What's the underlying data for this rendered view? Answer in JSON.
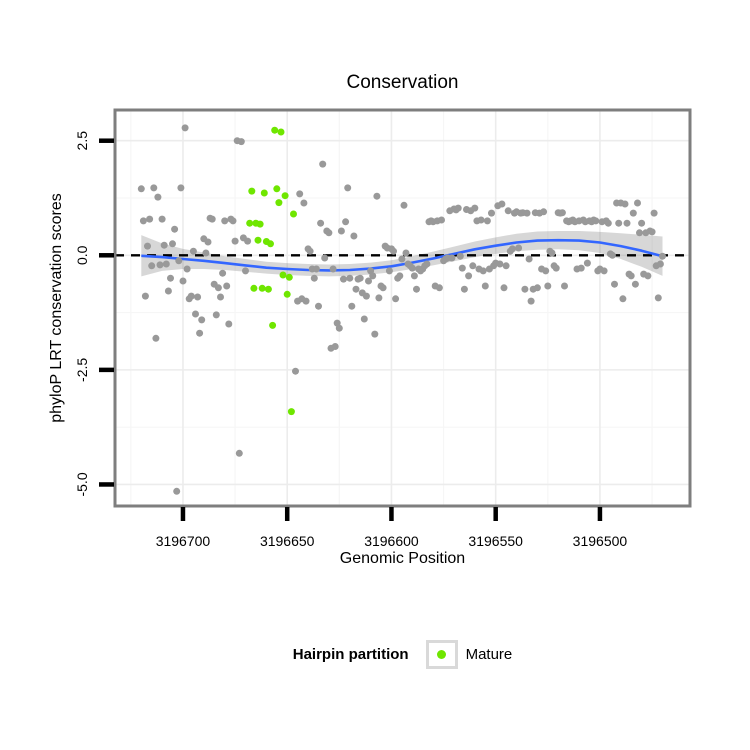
{
  "chart_data": {
    "type": "scatter",
    "title": "Conservation",
    "xlabel": "Genomic Position",
    "ylabel": "phyloP LRT conservation scores",
    "x_axis_reversed": true,
    "x_domain": [
      3196732.6,
      3196456.8
    ],
    "y_domain": [
      3.17,
      -5.47
    ],
    "x_ticks": [
      3196700,
      3196650,
      3196600,
      3196550,
      3196500
    ],
    "x_minor_gridlines": [
      3196725,
      3196675,
      3196625,
      3196575,
      3196525,
      3196475
    ],
    "y_ticks": [
      "2.5",
      "0.0",
      "-2.5",
      "-5.0"
    ],
    "y_tick_values": [
      2.5,
      0.0,
      -2.5,
      -5.0
    ],
    "y_minor_gridlines": [
      1.25,
      -1.25,
      -3.75
    ],
    "grid": "on",
    "reference_line": {
      "y": 0,
      "style": "dashed",
      "color": "#000000"
    },
    "legend": {
      "title": "Hairpin partition",
      "position": "bottom",
      "entries": [
        {
          "label": "Mature",
          "color": "#6FE600"
        }
      ]
    },
    "colors": {
      "other_points": "#999999",
      "mature_points": "#6FE600",
      "smooth_line": "#3366FF",
      "smooth_band": "rgba(110,110,110,0.28)",
      "panel_border": "#7e7e7e",
      "grid_major": "#ececec",
      "grid_minor": "#f6f6f6",
      "tick_marks": "#000000",
      "text": "#000000"
    },
    "series": [
      {
        "name": "other",
        "color": "#999999",
        "points": [
          [
            3196720,
            1.45
          ],
          [
            3196719,
            0.75
          ],
          [
            3196718,
            -0.89
          ],
          [
            3196717,
            0.2
          ],
          [
            3196716,
            0.79
          ],
          [
            3196715,
            -0.23
          ],
          [
            3196714,
            1.47
          ],
          [
            3196713,
            -1.81
          ],
          [
            3196712,
            1.27
          ],
          [
            3196711,
            -0.21
          ],
          [
            3196710,
            0.79
          ],
          [
            3196709,
            0.22
          ],
          [
            3196708,
            -0.19
          ],
          [
            3196707,
            -0.78
          ],
          [
            3196706,
            -0.5
          ],
          [
            3196705,
            0.25
          ],
          [
            3196704,
            0.57
          ],
          [
            3196703,
            -5.15
          ],
          [
            3196702,
            -0.12
          ],
          [
            3196701,
            1.47
          ],
          [
            3196700,
            -0.56
          ],
          [
            3196699,
            2.78
          ],
          [
            3196698,
            -0.3
          ],
          [
            3196697,
            -0.95
          ],
          [
            3196696,
            -0.89
          ],
          [
            3196695,
            0.09
          ],
          [
            3196694,
            -1.28
          ],
          [
            3196693,
            -0.91
          ],
          [
            3196692,
            -1.7
          ],
          [
            3196691,
            -1.41
          ],
          [
            3196690,
            0.36
          ],
          [
            3196689,
            0.05
          ],
          [
            3196688,
            0.29
          ],
          [
            3196687,
            0.81
          ],
          [
            3196686,
            0.79
          ],
          [
            3196685,
            -0.63
          ],
          [
            3196684,
            -1.3
          ],
          [
            3196683,
            -0.71
          ],
          [
            3196682,
            -0.91
          ],
          [
            3196681,
            -0.39
          ],
          [
            3196680,
            0.75
          ],
          [
            3196679,
            -0.67
          ],
          [
            3196678,
            -1.5
          ],
          [
            3196677,
            0.79
          ],
          [
            3196676,
            0.75
          ],
          [
            3196675,
            0.31
          ],
          [
            3196674,
            2.5
          ],
          [
            3196673,
            -4.32
          ],
          [
            3196672,
            2.48
          ],
          [
            3196671,
            0.38
          ],
          [
            3196670,
            -0.34
          ],
          [
            3196669,
            0.31
          ],
          [
            3196646,
            -2.53
          ],
          [
            3196645,
            -1.0
          ],
          [
            3196644,
            1.34
          ],
          [
            3196643,
            -0.95
          ],
          [
            3196642,
            1.14
          ],
          [
            3196641,
            -1.0
          ],
          [
            3196640,
            0.14
          ],
          [
            3196639,
            0.09
          ],
          [
            3196638,
            -0.3
          ],
          [
            3196637,
            -0.5
          ],
          [
            3196636,
            -0.3
          ],
          [
            3196635,
            -1.11
          ],
          [
            3196634,
            0.7
          ],
          [
            3196633,
            1.99
          ],
          [
            3196632,
            -0.06
          ],
          [
            3196631,
            0.53
          ],
          [
            3196630,
            0.49
          ],
          [
            3196629,
            -2.03
          ],
          [
            3196628,
            -0.3
          ],
          [
            3196627,
            -1.99
          ],
          [
            3196626,
            -1.48
          ],
          [
            3196625,
            -1.59
          ],
          [
            3196624,
            0.53
          ],
          [
            3196623,
            -0.52
          ],
          [
            3196622,
            0.73
          ],
          [
            3196621,
            1.47
          ],
          [
            3196620,
            -0.5
          ],
          [
            3196619,
            -1.11
          ],
          [
            3196618,
            0.42
          ],
          [
            3196617,
            -0.74
          ],
          [
            3196616,
            -0.52
          ],
          [
            3196615,
            -0.5
          ],
          [
            3196614,
            -0.82
          ],
          [
            3196613,
            -1.39
          ],
          [
            3196612,
            -0.89
          ],
          [
            3196611,
            -0.56
          ],
          [
            3196610,
            -0.34
          ],
          [
            3196609,
            -0.45
          ],
          [
            3196608,
            -1.72
          ],
          [
            3196607,
            1.29
          ],
          [
            3196606,
            -0.93
          ],
          [
            3196605,
            -0.67
          ],
          [
            3196604,
            -0.71
          ],
          [
            3196603,
            0.2
          ],
          [
            3196602,
            0.16
          ],
          [
            3196601,
            -0.34
          ],
          [
            3196600,
            0.14
          ],
          [
            3196599,
            0.09
          ],
          [
            3196598,
            -0.95
          ],
          [
            3196597,
            -0.5
          ],
          [
            3196596,
            -0.45
          ],
          [
            3196595,
            -0.08
          ],
          [
            3196594,
            1.09
          ],
          [
            3196593,
            0.05
          ],
          [
            3196592,
            -0.19
          ],
          [
            3196591,
            -0.23
          ],
          [
            3196590,
            -0.28
          ],
          [
            3196589,
            -0.45
          ],
          [
            3196588,
            -0.74
          ],
          [
            3196587,
            -0.3
          ],
          [
            3196586,
            -0.34
          ],
          [
            3196585,
            -0.3
          ],
          [
            3196584,
            -0.23
          ],
          [
            3196583,
            -0.19
          ],
          [
            3196582,
            0.73
          ],
          [
            3196581,
            0.75
          ],
          [
            3196580,
            0.73
          ],
          [
            3196579,
            -0.67
          ],
          [
            3196578,
            0.75
          ],
          [
            3196577,
            -0.71
          ],
          [
            3196576,
            0.77
          ],
          [
            3196575,
            -0.12
          ],
          [
            3196574,
            -0.08
          ],
          [
            3196573,
            -0.06
          ],
          [
            3196572,
            0.97
          ],
          [
            3196571,
            -0.06
          ],
          [
            3196570,
            1.01
          ],
          [
            3196569,
            0.99
          ],
          [
            3196568,
            1.03
          ],
          [
            3196567,
            -0.02
          ],
          [
            3196566,
            -0.28
          ],
          [
            3196565,
            -0.74
          ],
          [
            3196564,
            1.0
          ],
          [
            3196563,
            -0.45
          ],
          [
            3196562,
            0.97
          ],
          [
            3196561,
            -0.23
          ],
          [
            3196560,
            1.03
          ],
          [
            3196559,
            0.75
          ],
          [
            3196558,
            -0.3
          ],
          [
            3196557,
            0.77
          ],
          [
            3196556,
            -0.34
          ],
          [
            3196555,
            -0.67
          ],
          [
            3196554,
            0.75
          ],
          [
            3196553,
            -0.3
          ],
          [
            3196552,
            0.92
          ],
          [
            3196551,
            -0.23
          ],
          [
            3196550,
            -0.17
          ],
          [
            3196549,
            1.08
          ],
          [
            3196548,
            -0.19
          ],
          [
            3196547,
            1.12
          ],
          [
            3196546,
            -0.71
          ],
          [
            3196545,
            -0.23
          ],
          [
            3196544,
            0.97
          ],
          [
            3196543,
            0.09
          ],
          [
            3196542,
            0.14
          ],
          [
            3196541,
            0.92
          ],
          [
            3196540,
            0.95
          ],
          [
            3196539,
            0.16
          ],
          [
            3196538,
            0.92
          ],
          [
            3196537,
            0.93
          ],
          [
            3196536,
            -0.74
          ],
          [
            3196535,
            0.92
          ],
          [
            3196534,
            -0.08
          ],
          [
            3196533,
            -1.0
          ],
          [
            3196532,
            -0.74
          ],
          [
            3196531,
            0.93
          ],
          [
            3196530,
            -0.71
          ],
          [
            3196529,
            0.92
          ],
          [
            3196528,
            -0.3
          ],
          [
            3196527,
            0.95
          ],
          [
            3196526,
            -0.34
          ],
          [
            3196525,
            -0.67
          ],
          [
            3196524,
            0.09
          ],
          [
            3196523,
            0.05
          ],
          [
            3196522,
            -0.23
          ],
          [
            3196521,
            -0.28
          ],
          [
            3196520,
            0.93
          ],
          [
            3196519,
            0.92
          ],
          [
            3196518,
            0.93
          ],
          [
            3196517,
            -0.67
          ],
          [
            3196516,
            0.75
          ],
          [
            3196515,
            0.73
          ],
          [
            3196514,
            0.75
          ],
          [
            3196513,
            0.77
          ],
          [
            3196512,
            0.73
          ],
          [
            3196511,
            -0.3
          ],
          [
            3196510,
            0.75
          ],
          [
            3196509,
            -0.28
          ],
          [
            3196508,
            0.77
          ],
          [
            3196507,
            0.73
          ],
          [
            3196506,
            -0.17
          ],
          [
            3196505,
            0.75
          ],
          [
            3196504,
            0.73
          ],
          [
            3196503,
            0.77
          ],
          [
            3196502,
            0.75
          ],
          [
            3196501,
            -0.34
          ],
          [
            3196500,
            -0.3
          ],
          [
            3196499,
            0.73
          ],
          [
            3196498,
            -0.34
          ],
          [
            3196497,
            0.75
          ],
          [
            3196496,
            0.7
          ],
          [
            3196495,
            0.03
          ],
          [
            3196494,
            0.0
          ],
          [
            3196493,
            -0.63
          ],
          [
            3196492,
            1.14
          ],
          [
            3196491,
            0.7
          ],
          [
            3196490,
            1.14
          ],
          [
            3196489,
            -0.95
          ],
          [
            3196488,
            1.12
          ],
          [
            3196487,
            0.7
          ],
          [
            3196486,
            -0.41
          ],
          [
            3196485,
            -0.45
          ],
          [
            3196484,
            0.92
          ],
          [
            3196483,
            -0.63
          ],
          [
            3196482,
            1.14
          ],
          [
            3196481,
            0.49
          ],
          [
            3196480,
            0.7
          ],
          [
            3196479,
            -0.41
          ],
          [
            3196478,
            0.49
          ],
          [
            3196477,
            -0.45
          ],
          [
            3196476,
            0.53
          ],
          [
            3196475,
            0.51
          ],
          [
            3196474,
            0.92
          ],
          [
            3196473,
            -0.23
          ],
          [
            3196472,
            -0.93
          ],
          [
            3196471,
            -0.19
          ],
          [
            3196470,
            -0.02
          ]
        ]
      },
      {
        "name": "Mature",
        "color": "#6FE600",
        "points": [
          [
            3196668,
            0.7
          ],
          [
            3196667,
            1.4
          ],
          [
            3196666,
            -0.72
          ],
          [
            3196665,
            0.7
          ],
          [
            3196664,
            0.33
          ],
          [
            3196663,
            0.68
          ],
          [
            3196662,
            -0.72
          ],
          [
            3196661,
            1.36
          ],
          [
            3196660,
            0.3
          ],
          [
            3196659,
            -0.74
          ],
          [
            3196658,
            0.25
          ],
          [
            3196657,
            -1.53
          ],
          [
            3196656,
            2.73
          ],
          [
            3196655,
            1.45
          ],
          [
            3196654,
            1.15
          ],
          [
            3196653,
            2.69
          ],
          [
            3196652,
            -0.43
          ],
          [
            3196651,
            1.3
          ],
          [
            3196650,
            -0.85
          ],
          [
            3196649,
            -0.48
          ],
          [
            3196648,
            -3.41
          ],
          [
            3196647,
            0.9
          ]
        ]
      }
    ],
    "smooth": {
      "color": "#3366FF",
      "band_color": "rgba(110,110,110,0.28)",
      "points_x_y_ci": [
        [
          3196720,
          -0.01,
          0.45
        ],
        [
          3196710,
          -0.04,
          0.3
        ],
        [
          3196700,
          -0.08,
          0.22
        ],
        [
          3196690,
          -0.12,
          0.18
        ],
        [
          3196680,
          -0.17,
          0.15
        ],
        [
          3196670,
          -0.22,
          0.14
        ],
        [
          3196660,
          -0.27,
          0.13
        ],
        [
          3196650,
          -0.3,
          0.13
        ],
        [
          3196640,
          -0.32,
          0.13
        ],
        [
          3196630,
          -0.33,
          0.13
        ],
        [
          3196620,
          -0.32,
          0.13
        ],
        [
          3196610,
          -0.29,
          0.13
        ],
        [
          3196600,
          -0.24,
          0.13
        ],
        [
          3196590,
          -0.16,
          0.14
        ],
        [
          3196580,
          -0.07,
          0.15
        ],
        [
          3196570,
          0.03,
          0.16
        ],
        [
          3196560,
          0.13,
          0.17
        ],
        [
          3196550,
          0.21,
          0.18
        ],
        [
          3196540,
          0.28,
          0.19
        ],
        [
          3196530,
          0.32,
          0.2
        ],
        [
          3196520,
          0.33,
          0.2
        ],
        [
          3196510,
          0.32,
          0.21
        ],
        [
          3196500,
          0.28,
          0.23
        ],
        [
          3196490,
          0.2,
          0.28
        ],
        [
          3196480,
          0.1,
          0.35
        ],
        [
          3196470,
          -0.02,
          0.43
        ]
      ]
    }
  },
  "header": {
    "title": "Conservation"
  },
  "axes": {
    "x_title": "Genomic Position",
    "y_title": "phyloP LRT conservation scores"
  },
  "legend": {
    "title": "Hairpin partition",
    "mature_label": "Mature"
  }
}
